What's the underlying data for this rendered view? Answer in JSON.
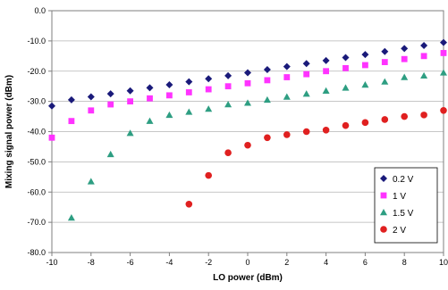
{
  "chart_data": {
    "type": "scatter",
    "xlabel": "LO power (dBm)",
    "ylabel": "Mixing signal power (dBm)",
    "xlim": [
      -10,
      10
    ],
    "ylim": [
      -80,
      0
    ],
    "x_ticks": [
      "-10",
      "-8",
      "-6",
      "-4",
      "-2",
      "0",
      "2",
      "4",
      "6",
      "8",
      "10"
    ],
    "y_ticks": [
      "0.0",
      "-10.0",
      "-20.0",
      "-30.0",
      "-40.0",
      "-50.0",
      "-60.0",
      "-70.0",
      "-80.0"
    ],
    "grid": "horizontal",
    "legend_position": "right",
    "series": [
      {
        "name": "0.2 V",
        "color": "#1a1a7a",
        "marker": "diamond",
        "x": [
          -10,
          -9,
          -8,
          -7,
          -6,
          -5,
          -4,
          -3,
          -2,
          -1,
          0,
          1,
          2,
          3,
          4,
          5,
          6,
          7,
          8,
          9,
          10
        ],
        "y": [
          -31.5,
          -29.5,
          -28.5,
          -27.5,
          -26.5,
          -25.5,
          -24.5,
          -23.5,
          -22.5,
          -21.5,
          -20.5,
          -19.5,
          -18.5,
          -17.5,
          -16.5,
          -15.5,
          -14.5,
          -13.5,
          -12.5,
          -11.5,
          -10.5
        ]
      },
      {
        "name": "1 V",
        "color": "#ff33ff",
        "marker": "square",
        "x": [
          -10,
          -9,
          -8,
          -7,
          -6,
          -5,
          -4,
          -3,
          -2,
          -1,
          0,
          1,
          2,
          3,
          4,
          5,
          6,
          7,
          8,
          9,
          10
        ],
        "y": [
          -42,
          -36.5,
          -33,
          -31,
          -30,
          -29,
          -28,
          -27,
          -26,
          -25,
          -24,
          -23,
          -22,
          -21,
          -20,
          -19,
          -18,
          -17,
          -16,
          -15,
          -14
        ]
      },
      {
        "name": "1.5 V",
        "color": "#2e9e82",
        "marker": "triangle",
        "x": [
          -9,
          -8,
          -7,
          -6,
          -5,
          -4,
          -3,
          -2,
          -1,
          0,
          1,
          2,
          3,
          4,
          5,
          6,
          7,
          8,
          9,
          10
        ],
        "y": [
          -68.5,
          -56.5,
          -47.5,
          -40.5,
          -36.5,
          -34.5,
          -33.5,
          -32.5,
          -31,
          -30.5,
          -29.5,
          -28.5,
          -27.5,
          -26.5,
          -25.5,
          -24.5,
          -23.5,
          -22,
          -21.5,
          -20.5
        ]
      },
      {
        "name": "2 V",
        "color": "#e02020",
        "marker": "circle",
        "x": [
          -3,
          -2,
          -1,
          0,
          1,
          2,
          3,
          4,
          5,
          6,
          7,
          8,
          9,
          10
        ],
        "y": [
          -64,
          -54.5,
          -47,
          -44.5,
          -42,
          -41,
          -40,
          -39.5,
          -38,
          -37,
          -36,
          -35,
          -34.5,
          -33
        ]
      }
    ]
  }
}
